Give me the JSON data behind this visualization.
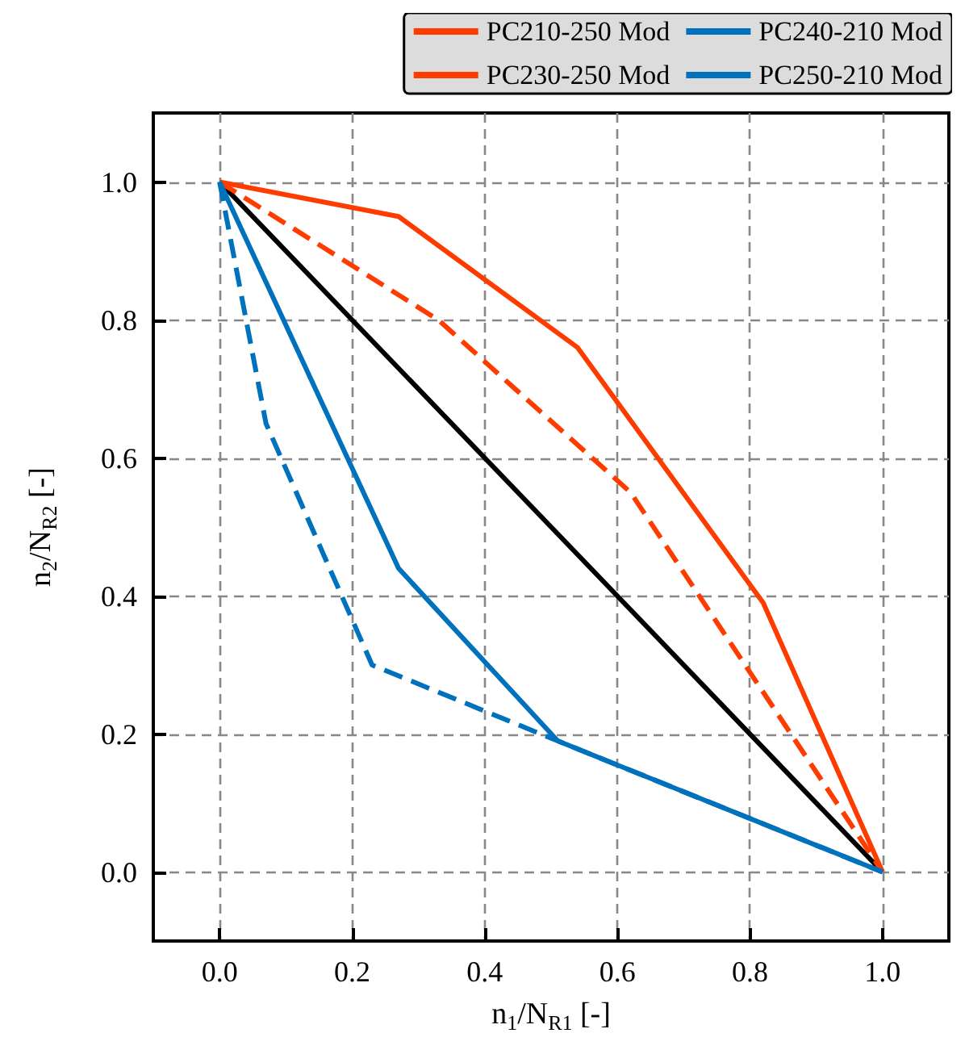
{
  "chart_data": {
    "type": "line",
    "xlabel": "n$_{1}$/N$_{R1}$ [-]",
    "ylabel": "n$_{2}$/N$_{R2}$ [-]",
    "xlim": [
      -0.1,
      1.1
    ],
    "ylim": [
      -0.1,
      1.1
    ],
    "xticks": [
      {
        "value": 0,
        "label": "0.0"
      },
      {
        "value": 0.2,
        "label": "0.2"
      },
      {
        "value": 0.4,
        "label": "0.4"
      },
      {
        "value": 0.6,
        "label": "0.6"
      },
      {
        "value": 0.8,
        "label": "0.8"
      },
      {
        "value": 1,
        "label": "1.0"
      }
    ],
    "yticks": [
      {
        "value": 0,
        "label": "0.0"
      },
      {
        "value": 0.2,
        "label": "0.2"
      },
      {
        "value": 0.4,
        "label": "0.4"
      },
      {
        "value": 0.6,
        "label": "0.6"
      },
      {
        "value": 0.8,
        "label": "0.8"
      },
      {
        "value": 1,
        "label": "1.0"
      }
    ],
    "grid": true,
    "legend": "top right",
    "marker": "none",
    "series": [
      {
        "name": "PC210-250 Mod",
        "color": "#ff3c00",
        "line_style": "solid",
        "x": [
          0,
          0.27,
          0.54,
          0.82,
          1
        ],
        "values": [
          1,
          0.95,
          0.76,
          0.39,
          0
        ]
      },
      {
        "name": "PC230-250 Mod",
        "color": "#ff3c00",
        "line_style": "dashed",
        "x": [
          0,
          0.33,
          0.62,
          1
        ],
        "values": [
          1,
          0.8,
          0.55,
          0
        ]
      },
      {
        "name": "PC240-210 Mod",
        "color": "#0072bd",
        "line_style": "solid",
        "x": [
          0,
          0.27,
          0.51,
          1
        ],
        "values": [
          1,
          0.44,
          0.19,
          0
        ]
      },
      {
        "name": "PC250-210 Mod",
        "color": "#0072bd",
        "line_style": "dashed",
        "x": [
          0,
          0.07,
          0.23,
          0.51,
          1
        ],
        "values": [
          1,
          0.65,
          0.3,
          0.19,
          0
        ]
      },
      {
        "color": "#000000",
        "line_style": "solid",
        "x": [
          0,
          1
        ],
        "values": [
          1,
          0
        ]
      }
    ]
  }
}
